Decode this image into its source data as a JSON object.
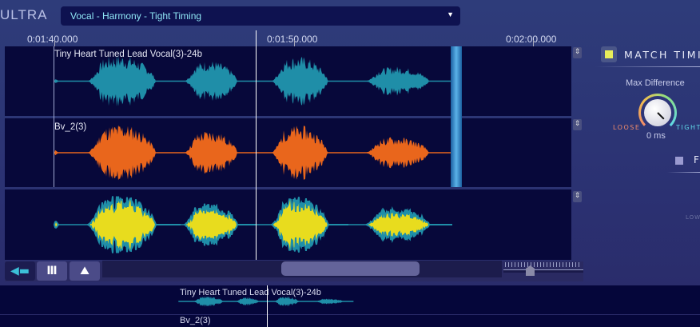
{
  "app": {
    "logo": "ULTRA"
  },
  "preset": {
    "value": "Vocal - Harmony - Tight Timing",
    "arrow": "▼"
  },
  "ruler": {
    "ticks": [
      "0:01:40.000",
      "0:01:50.000",
      "0:02:00.000"
    ]
  },
  "tracks": [
    {
      "name": "Tiny Heart Tuned Lead Vocal(3)-24b",
      "color": "#1f8ea8"
    },
    {
      "name": "Bv_2(3)",
      "color": "#e9661c"
    },
    {
      "name": "",
      "color": "#e8dc1e",
      "outline": "#1f8ea8"
    }
  ],
  "toolbar": {
    "buttons": [
      "waveform-view",
      "piano-roll-view",
      "spectrum-view"
    ],
    "active": "waveform-view"
  },
  "overview": {
    "tracks": [
      "Tiny Heart Tuned Lead Vocal(3)-24b",
      "Bv_2(3)"
    ]
  },
  "panel": {
    "match_timing": {
      "label": "MATCH TIMING",
      "enabled": true,
      "checkbox_color": "#e8ee5a"
    },
    "max_difference": {
      "label": "Max Difference",
      "value": "0 ms",
      "left": "LOOSE",
      "right": "TIGHT",
      "loose_color": "#f08a6a",
      "tight_color": "#5fd8e8"
    },
    "second_option": {
      "label": "F",
      "enabled": false
    },
    "low_label": "LOW"
  }
}
